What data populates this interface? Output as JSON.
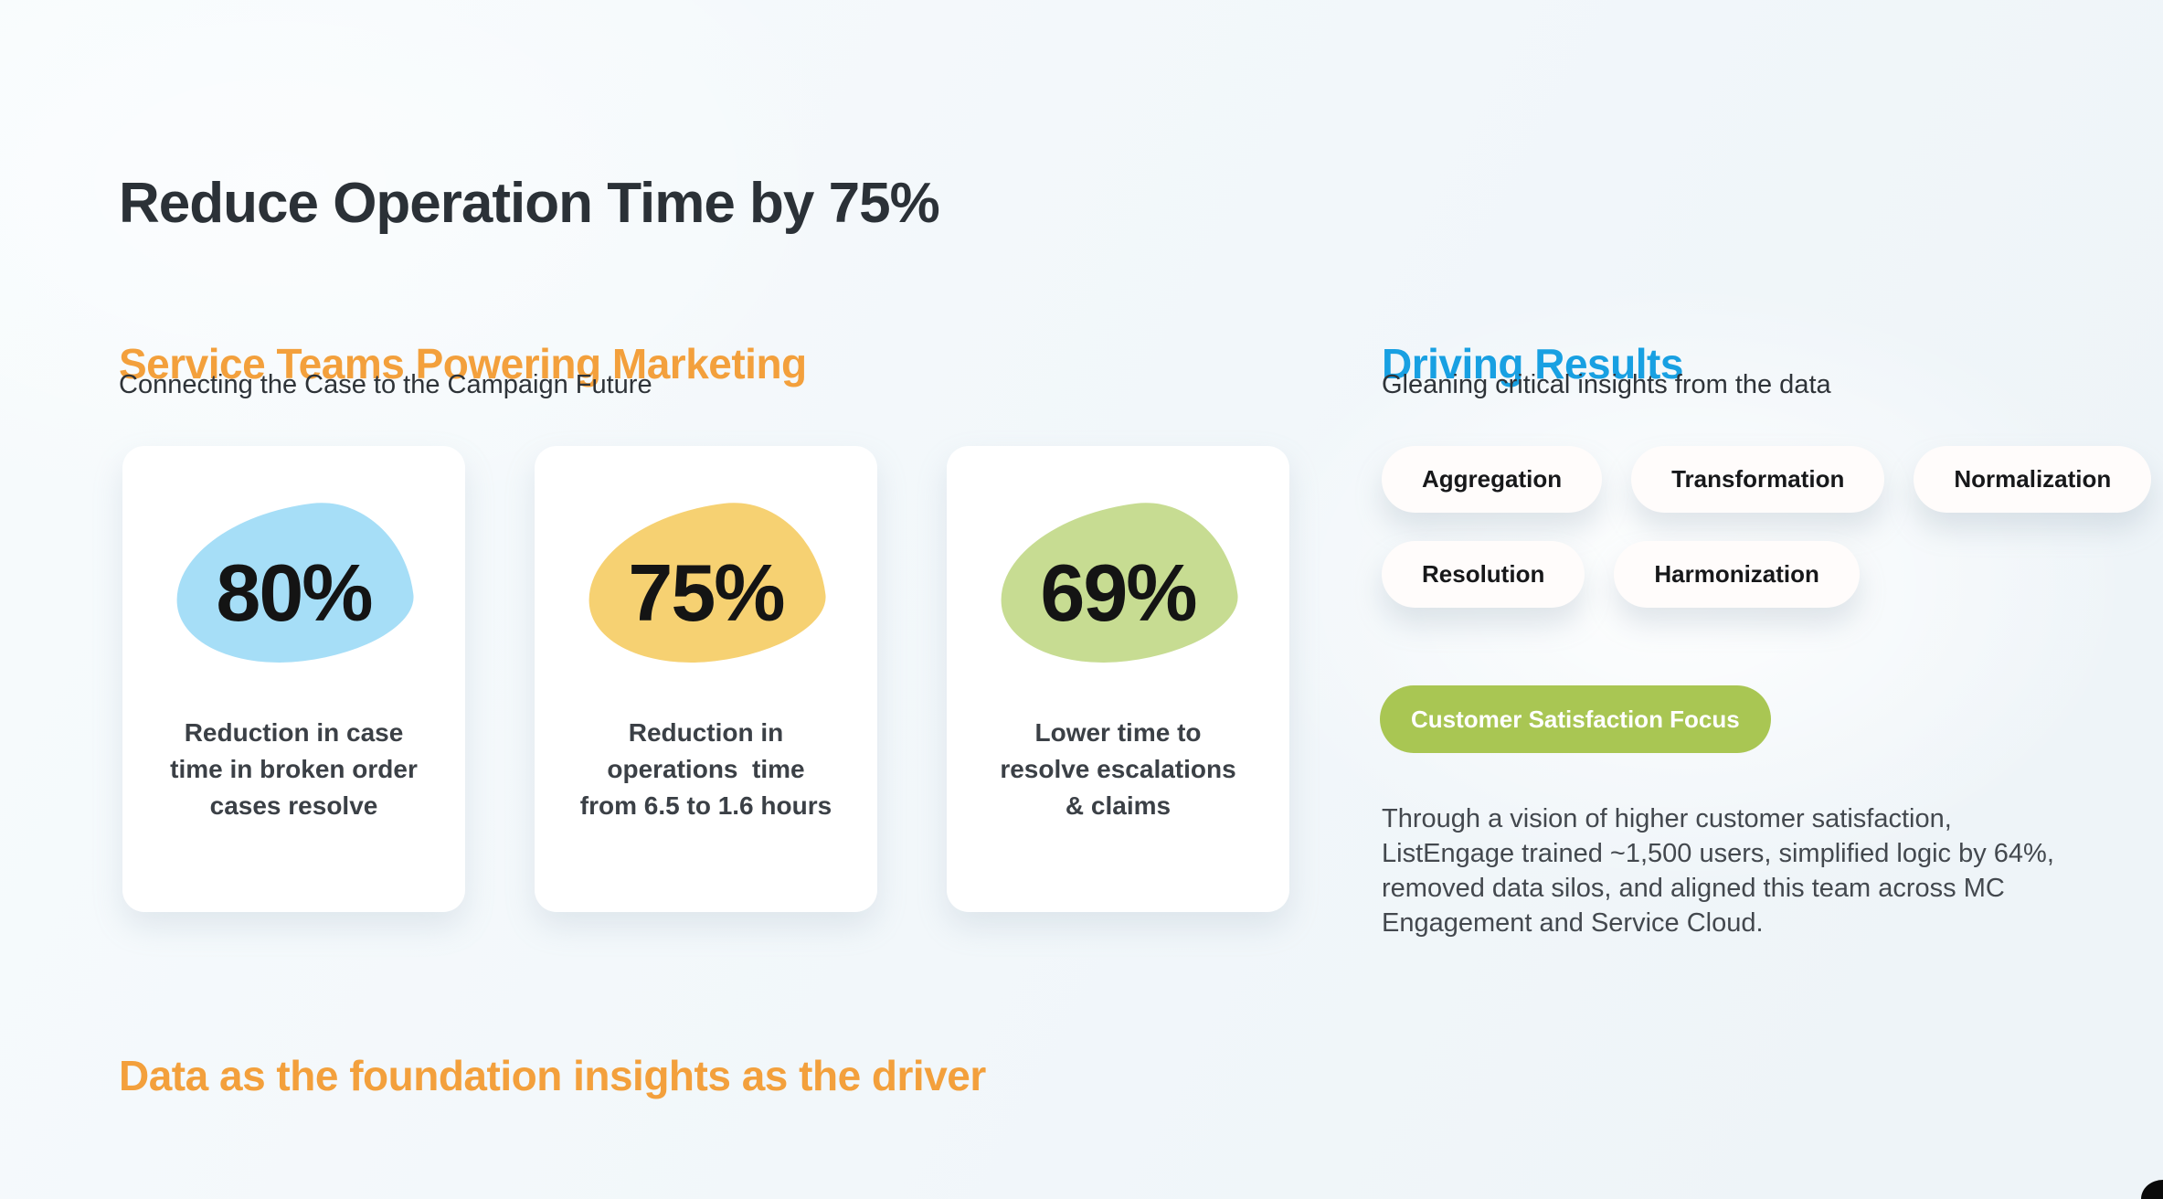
{
  "slide": {
    "title": "Reduce Operation Time by 75%",
    "footer_heading": "Data as the foundation insights as the driver"
  },
  "left_section": {
    "heading": "Service Teams Powering Marketing",
    "subheading": "Connecting the Case to the Campaign Future",
    "cards": [
      {
        "value": "80%",
        "description": "Reduction in case\ntime in broken order\ncases resolve",
        "blob_color": "#a6def7"
      },
      {
        "value": "75%",
        "description": "Reduction in\noperations  time\nfrom 6.5 to 1.6 hours",
        "blob_color": "#f6d172"
      },
      {
        "value": "69%",
        "description": "Lower time to\nresolve escalations\n& claims",
        "blob_color": "#c7dc92"
      }
    ]
  },
  "right_section": {
    "heading": "Driving Results",
    "subheading": "Gleaning critical insights from the data",
    "tag_rows": [
      [
        "Aggregation",
        "Transformation",
        "Normalization"
      ],
      [
        "Resolution",
        "Harmonization"
      ]
    ],
    "badge_label": "Customer Satisfaction Focus",
    "paragraph": "Through a vision of higher customer satisfaction,\nListEngage trained ~1,500 users, simplified logic by 64%,\nremoved data silos, and aligned this team across MC\nEngagement and Service Cloud."
  },
  "colors": {
    "title_dark": "#2b3137",
    "heading_orange": "#f3a03c",
    "heading_blue": "#18a0e2",
    "badge_green": "#a9c653"
  }
}
